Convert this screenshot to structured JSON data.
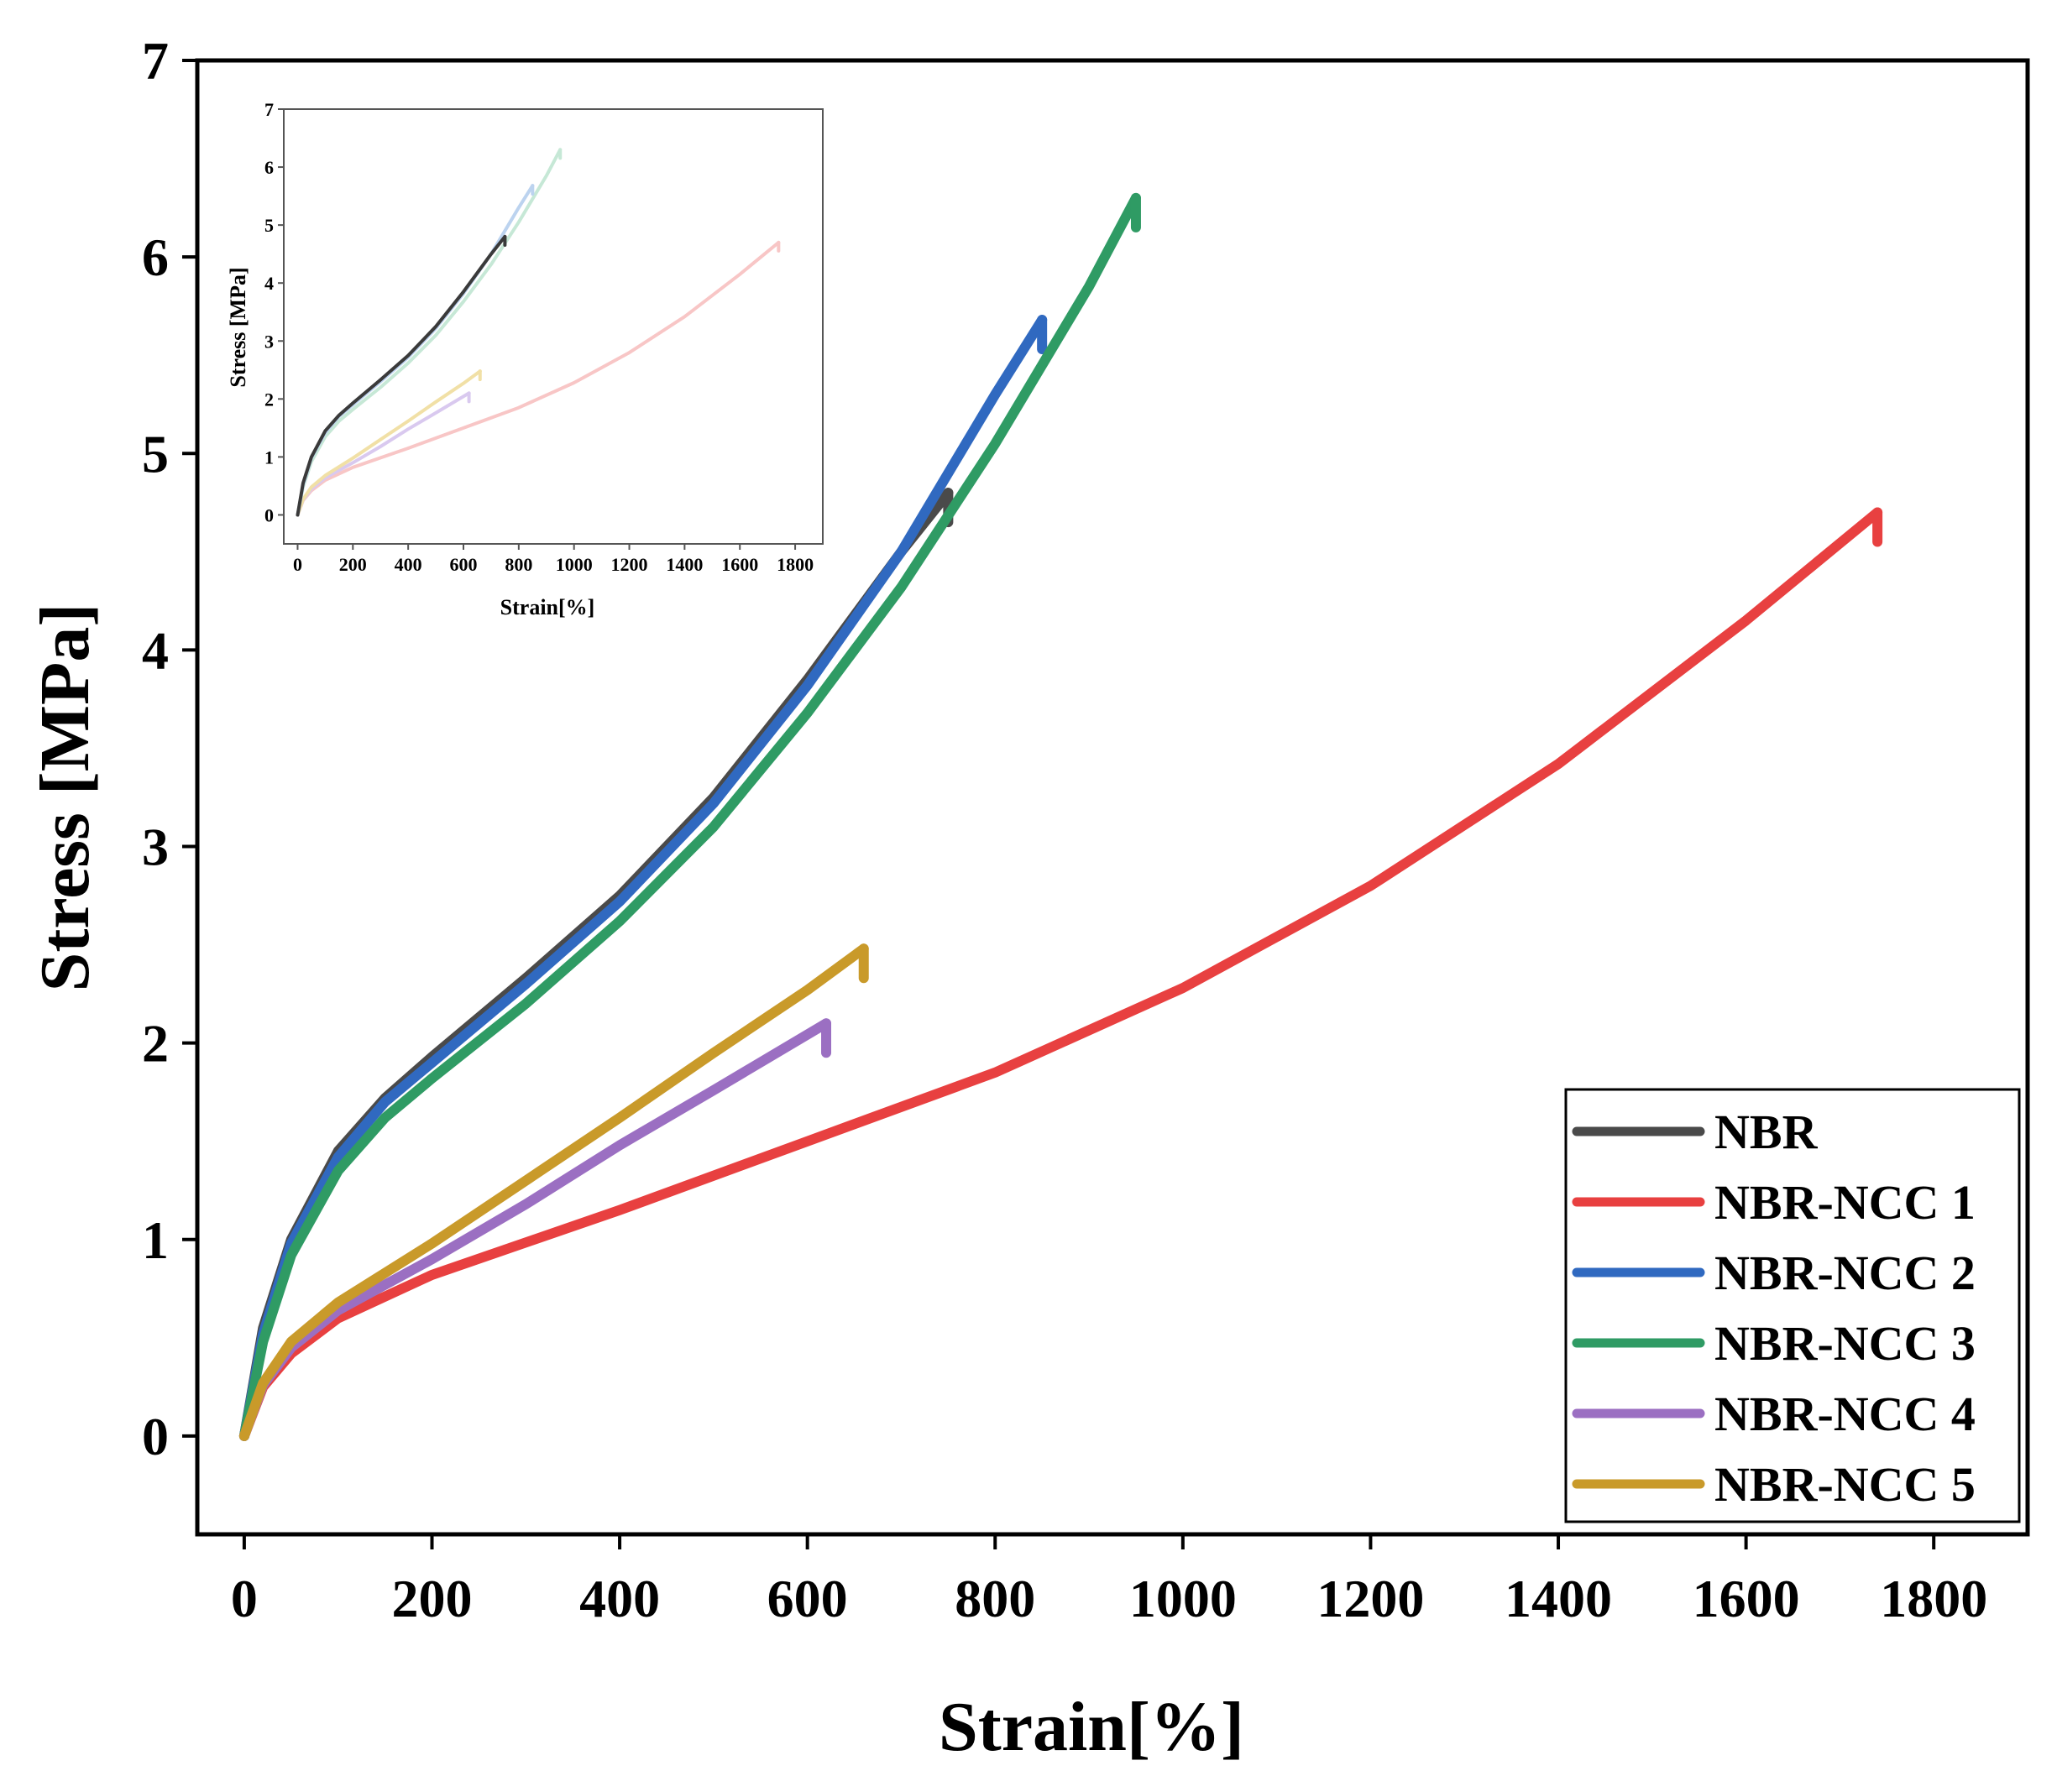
{
  "chart_data": [
    {
      "type": "line",
      "role": "main",
      "xlabel": "Strain[%]",
      "ylabel": "Stress [MPa]",
      "xlim": [
        -50,
        1900
      ],
      "ylim": [
        -0.5,
        7
      ],
      "xticks": [
        0,
        200,
        400,
        600,
        800,
        1000,
        1200,
        1400,
        1600,
        1800
      ],
      "yticks": [
        0,
        1,
        2,
        3,
        4,
        5,
        6,
        7
      ],
      "legend_position": "bottom-right",
      "series": [
        {
          "name": "NBR",
          "color": "#4a4a4a",
          "x": [
            0,
            20,
            50,
            100,
            150,
            200,
            300,
            400,
            500,
            600,
            700,
            750
          ],
          "y": [
            0,
            0.55,
            1.0,
            1.45,
            1.72,
            1.93,
            2.33,
            2.75,
            3.25,
            3.85,
            4.5,
            4.8
          ]
        },
        {
          "name": "NBR-NCC 1",
          "color": "#e84040",
          "x": [
            0,
            20,
            50,
            100,
            200,
            400,
            600,
            800,
            1000,
            1200,
            1400,
            1600,
            1740
          ],
          "y": [
            0,
            0.25,
            0.42,
            0.6,
            0.82,
            1.15,
            1.5,
            1.85,
            2.28,
            2.8,
            3.42,
            4.15,
            4.7
          ]
        },
        {
          "name": "NBR-NCC 2",
          "color": "#3069c0",
          "x": [
            0,
            20,
            50,
            100,
            150,
            200,
            300,
            400,
            500,
            600,
            700,
            800,
            850
          ],
          "y": [
            0,
            0.52,
            0.98,
            1.42,
            1.7,
            1.9,
            2.3,
            2.72,
            3.22,
            3.82,
            4.5,
            5.3,
            5.68
          ]
        },
        {
          "name": "NBR-NCC 3",
          "color": "#2f9b64",
          "x": [
            0,
            20,
            50,
            100,
            150,
            200,
            300,
            400,
            500,
            600,
            700,
            800,
            900,
            950
          ],
          "y": [
            0,
            0.48,
            0.92,
            1.35,
            1.62,
            1.82,
            2.2,
            2.62,
            3.1,
            3.68,
            4.32,
            5.05,
            5.85,
            6.3
          ]
        },
        {
          "name": "NBR-NCC 4",
          "color": "#9b6fc2",
          "x": [
            0,
            20,
            50,
            100,
            200,
            300,
            400,
            500,
            620
          ],
          "y": [
            0,
            0.26,
            0.45,
            0.64,
            0.9,
            1.18,
            1.48,
            1.76,
            2.1
          ]
        },
        {
          "name": "NBR-NCC 5",
          "color": "#c99a2a",
          "x": [
            0,
            20,
            50,
            100,
            200,
            300,
            400,
            500,
            600,
            660
          ],
          "y": [
            0,
            0.27,
            0.48,
            0.68,
            0.98,
            1.3,
            1.62,
            1.95,
            2.27,
            2.48
          ]
        }
      ]
    },
    {
      "type": "line",
      "role": "inset",
      "xlabel": "Strain[%]",
      "ylabel": "Stress [MPa]",
      "xlim": [
        -50,
        1900
      ],
      "ylim": [
        -0.5,
        7
      ],
      "xticks": [
        0,
        200,
        400,
        600,
        800,
        1000,
        1200,
        1400,
        1600,
        1800
      ],
      "yticks": [
        0,
        1,
        2,
        3,
        4,
        5,
        6,
        7
      ],
      "series": [
        {
          "name": "NBR-NCC 1",
          "color": "#f8c6c6",
          "x": [
            0,
            20,
            50,
            100,
            200,
            400,
            600,
            800,
            1000,
            1200,
            1400,
            1600,
            1740
          ],
          "y": [
            0,
            0.25,
            0.42,
            0.6,
            0.82,
            1.15,
            1.5,
            1.85,
            2.28,
            2.8,
            3.42,
            4.15,
            4.7
          ]
        },
        {
          "name": "NBR-NCC 4",
          "color": "#d9c9ef",
          "x": [
            0,
            20,
            50,
            100,
            200,
            300,
            400,
            500,
            620
          ],
          "y": [
            0,
            0.26,
            0.45,
            0.64,
            0.9,
            1.18,
            1.48,
            1.76,
            2.1
          ]
        },
        {
          "name": "NBR-NCC 5",
          "color": "#f1e0a6",
          "x": [
            0,
            20,
            50,
            100,
            200,
            300,
            400,
            500,
            600,
            660
          ],
          "y": [
            0,
            0.27,
            0.48,
            0.68,
            0.98,
            1.3,
            1.62,
            1.95,
            2.27,
            2.48
          ]
        },
        {
          "name": "NBR-NCC 3",
          "color": "#c6e8d6",
          "x": [
            0,
            20,
            50,
            100,
            150,
            200,
            300,
            400,
            500,
            600,
            700,
            800,
            900,
            950
          ],
          "y": [
            0,
            0.48,
            0.92,
            1.35,
            1.62,
            1.82,
            2.2,
            2.62,
            3.1,
            3.68,
            4.32,
            5.05,
            5.85,
            6.3
          ]
        },
        {
          "name": "NBR-NCC 2",
          "color": "#bcd3ef",
          "x": [
            0,
            20,
            50,
            100,
            150,
            200,
            300,
            400,
            500,
            600,
            700,
            800,
            850
          ],
          "y": [
            0,
            0.52,
            0.98,
            1.42,
            1.7,
            1.9,
            2.3,
            2.72,
            3.22,
            3.82,
            4.5,
            5.3,
            5.68
          ]
        },
        {
          "name": "NBR",
          "color": "#3a3a3a",
          "x": [
            0,
            20,
            50,
            100,
            150,
            200,
            300,
            400,
            500,
            600,
            700,
            750
          ],
          "y": [
            0,
            0.55,
            1.0,
            1.45,
            1.72,
            1.93,
            2.33,
            2.75,
            3.25,
            3.85,
            4.5,
            4.8
          ]
        }
      ]
    }
  ]
}
